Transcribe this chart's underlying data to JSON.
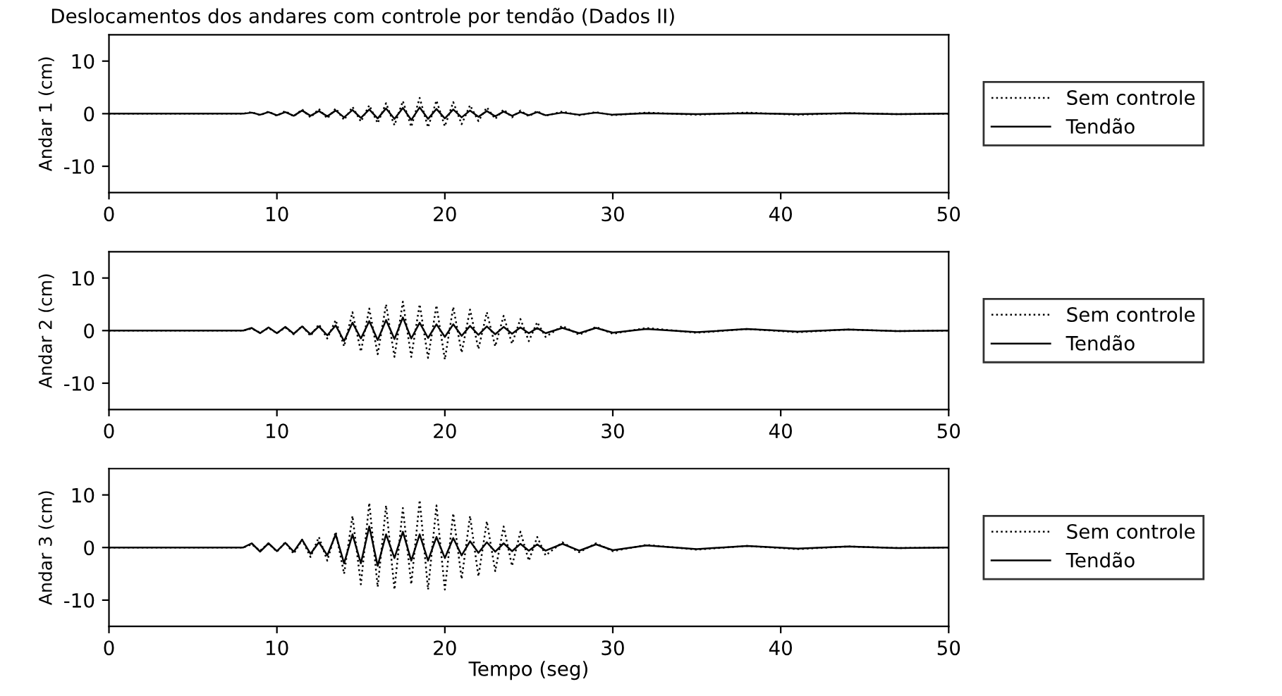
{
  "chart_data": [
    {
      "type": "line",
      "title": "Deslocamentos dos andares com controle por tendão (Dados II)",
      "ylabel": "Andar 1 (cm)",
      "legend": "right",
      "grid": false,
      "x": [
        0,
        8,
        8.5,
        9,
        9.5,
        10,
        10.5,
        11,
        11.5,
        12,
        12.5,
        13,
        13.5,
        14,
        14.5,
        15,
        15.5,
        16,
        16.5,
        17,
        17.5,
        18,
        18.5,
        19,
        19.5,
        20,
        20.5,
        21,
        21.5,
        22,
        22.5,
        23,
        23.5,
        24,
        24.5,
        25,
        25.5,
        26,
        27,
        28,
        29,
        30,
        32,
        35,
        38,
        41,
        44,
        47,
        50
      ],
      "xlim": [
        0,
        50
      ],
      "xticks": [
        0,
        10,
        20,
        30,
        40,
        50
      ],
      "ylim": [
        -15,
        15
      ],
      "yticks": [
        -10,
        0,
        10
      ],
      "series": [
        {
          "name": "Sem controle",
          "color": "#000000",
          "line_style": "dotted",
          "values": [
            0,
            0,
            0.3,
            -0.3,
            0.4,
            -0.4,
            0.5,
            -0.5,
            0.8,
            -0.7,
            0.9,
            -0.9,
            1.0,
            -1.2,
            1.3,
            -1.5,
            1.6,
            -1.8,
            2.0,
            -2.2,
            2.4,
            -2.5,
            3.0,
            -2.6,
            2.5,
            -2.4,
            2.2,
            -2.0,
            1.6,
            -1.4,
            1.2,
            -1.0,
            0.8,
            -0.7,
            0.6,
            -0.5,
            0.5,
            -0.4,
            0.4,
            -0.3,
            0.3,
            -0.3,
            0.2,
            -0.2,
            0.2,
            -0.2,
            0.1,
            -0.1,
            0
          ]
        },
        {
          "name": "Tendão",
          "color": "#000000",
          "line_style": "solid",
          "values": [
            0,
            0,
            0.2,
            -0.2,
            0.3,
            -0.3,
            0.3,
            -0.4,
            0.6,
            -0.4,
            0.5,
            -0.5,
            0.6,
            -0.7,
            0.7,
            -0.8,
            0.8,
            -0.9,
            1.0,
            -1.0,
            1.1,
            -1.2,
            1.2,
            -1.0,
            0.9,
            -0.9,
            0.8,
            -0.7,
            0.6,
            -0.6,
            0.5,
            -0.5,
            0.4,
            -0.4,
            0.3,
            -0.3,
            0.3,
            -0.3,
            0.2,
            -0.2,
            0.2,
            -0.2,
            0.1,
            -0.1,
            0.1,
            -0.1,
            0.1,
            -0.1,
            0
          ]
        }
      ]
    },
    {
      "type": "line",
      "ylabel": "Andar 2 (cm)",
      "legend": "right",
      "grid": false,
      "x": [
        0,
        8,
        8.5,
        9,
        9.5,
        10,
        10.5,
        11,
        11.5,
        12,
        12.5,
        13,
        13.5,
        14,
        14.5,
        15,
        15.5,
        16,
        16.5,
        17,
        17.5,
        18,
        18.5,
        19,
        19.5,
        20,
        20.5,
        21,
        21.5,
        22,
        22.5,
        23,
        23.5,
        24,
        24.5,
        25,
        25.5,
        26,
        27,
        28,
        29,
        30,
        32,
        35,
        38,
        41,
        44,
        47,
        50
      ],
      "xlim": [
        0,
        50
      ],
      "xticks": [
        0,
        10,
        20,
        30,
        40,
        50
      ],
      "ylim": [
        -15,
        15
      ],
      "yticks": [
        -10,
        0,
        10
      ],
      "series": [
        {
          "name": "Sem controle",
          "color": "#000000",
          "line_style": "dotted",
          "values": [
            0,
            0,
            0.4,
            -0.4,
            0.5,
            -0.5,
            0.6,
            -0.7,
            0.9,
            -1.0,
            1.2,
            -1.5,
            2.0,
            -3.0,
            3.5,
            -4.0,
            4.2,
            -4.5,
            5.0,
            -5.0,
            5.5,
            -5.0,
            5.0,
            -5.2,
            4.8,
            -5.5,
            4.5,
            -4.2,
            4.0,
            -3.5,
            3.5,
            -3.0,
            2.8,
            -2.5,
            2.2,
            -2.0,
            1.6,
            -1.2,
            0.9,
            -0.8,
            0.7,
            -0.6,
            0.5,
            -0.4,
            0.3,
            -0.3,
            0.2,
            -0.1,
            0
          ]
        },
        {
          "name": "Tendão",
          "color": "#000000",
          "line_style": "solid",
          "values": [
            0,
            0,
            0.5,
            -0.5,
            0.6,
            -0.5,
            0.7,
            -0.6,
            0.8,
            -0.7,
            0.8,
            -0.9,
            1.0,
            -2.0,
            1.5,
            -1.5,
            1.8,
            -1.8,
            2.0,
            -1.6,
            2.5,
            -1.5,
            1.5,
            -1.4,
            1.2,
            -1.2,
            1.2,
            -1.0,
            0.9,
            -0.8,
            0.8,
            -0.7,
            0.7,
            -0.6,
            0.6,
            -0.5,
            0.5,
            -0.5,
            0.5,
            -0.5,
            0.5,
            -0.4,
            0.3,
            -0.3,
            0.3,
            -0.2,
            0.2,
            -0.1,
            0
          ]
        }
      ]
    },
    {
      "type": "line",
      "ylabel": "Andar 3 (cm)",
      "xlabel": "Tempo (seg)",
      "legend": "right",
      "grid": false,
      "x": [
        0,
        8,
        8.5,
        9,
        9.5,
        10,
        10.5,
        11,
        11.5,
        12,
        12.5,
        13,
        13.5,
        14,
        14.5,
        15,
        15.5,
        16,
        16.5,
        17,
        17.5,
        18,
        18.5,
        19,
        19.5,
        20,
        20.5,
        21,
        21.5,
        22,
        22.5,
        23,
        23.5,
        24,
        24.5,
        25,
        25.5,
        26,
        27,
        28,
        29,
        30,
        32,
        35,
        38,
        41,
        44,
        47,
        50
      ],
      "xlim": [
        0,
        50
      ],
      "xticks": [
        0,
        10,
        20,
        30,
        40,
        50
      ],
      "ylim": [
        -15,
        15
      ],
      "yticks": [
        -10,
        0,
        10
      ],
      "series": [
        {
          "name": "Sem controle",
          "color": "#000000",
          "line_style": "dotted",
          "values": [
            0,
            0,
            0.6,
            -0.6,
            0.8,
            -0.8,
            1.0,
            -1.2,
            1.5,
            -1.8,
            2.0,
            -2.5,
            3.0,
            -5.0,
            6.0,
            -7.0,
            8.5,
            -7.5,
            8.0,
            -8.0,
            7.5,
            -7.0,
            9.0,
            -8.0,
            8.0,
            -8.0,
            6.5,
            -6.0,
            6.0,
            -5.5,
            5.0,
            -4.5,
            4.0,
            -3.5,
            3.0,
            -2.5,
            2.0,
            -1.5,
            1.0,
            -0.9,
            0.8,
            -0.7,
            0.5,
            -0.4,
            0.3,
            -0.3,
            0.2,
            -0.1,
            0
          ]
        },
        {
          "name": "Tendão",
          "color": "#000000",
          "line_style": "solid",
          "values": [
            0,
            0,
            0.8,
            -0.8,
            0.8,
            -0.7,
            0.9,
            -0.8,
            1.5,
            -1.2,
            1.0,
            -1.5,
            2.5,
            -3.0,
            2.5,
            -3.0,
            4.0,
            -3.5,
            2.5,
            -2.0,
            3.0,
            -2.5,
            2.5,
            -2.5,
            2.0,
            -2.0,
            1.8,
            -1.5,
            1.2,
            -1.0,
            1.0,
            -0.8,
            0.8,
            -0.7,
            0.7,
            -0.6,
            0.6,
            -0.6,
            0.7,
            -0.6,
            0.6,
            -0.5,
            0.4,
            -0.3,
            0.3,
            -0.2,
            0.2,
            -0.1,
            0
          ]
        }
      ]
    }
  ]
}
